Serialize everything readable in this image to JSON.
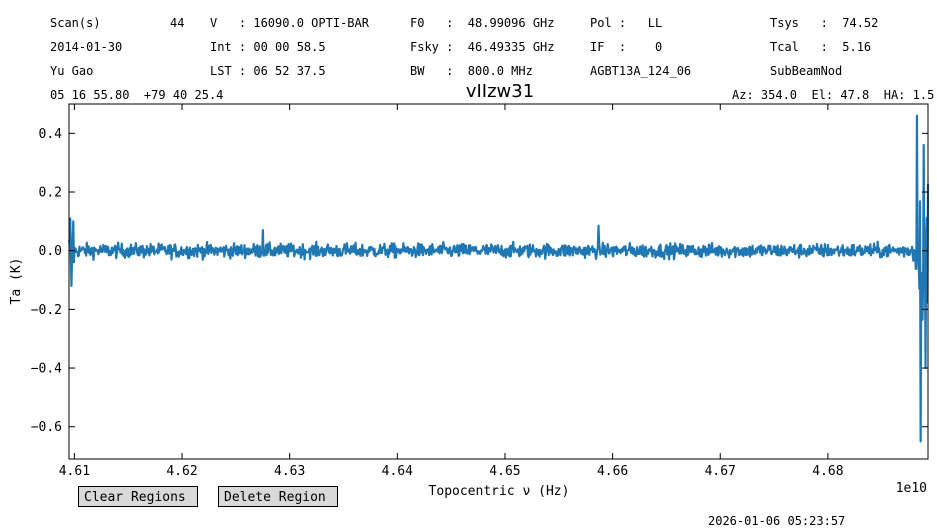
{
  "header": {
    "col1": [
      "Scan(s)",
      "2014-01-30",
      "Yu Gao"
    ],
    "scan_number": "44",
    "col2": [
      "V   : 16090.0 OPTI-BAR",
      "Int : 00 00 58.5",
      "LST : 06 52 37.5"
    ],
    "col3": [
      "F0   :  48.99096 GHz",
      "Fsky :  46.49335 GHz",
      "BW   :  800.0 MHz"
    ],
    "col4": [
      "Pol :   LL",
      "IF  :    0",
      "AGBT13A_124_06"
    ],
    "col5": [
      "Tsys   :  74.52",
      "Tcal   :  5.16",
      "SubBeamNod"
    ],
    "coords": "05 16 55.80  +79 40 25.4",
    "azelha": "Az: 354.0  El: 47.8  HA: 1.5"
  },
  "chart_data": {
    "type": "line",
    "title": "vIIzw31",
    "xlabel": "Topocentric ν (Hz)",
    "ylabel": "Ta (K)",
    "x_offset_label": "1e10",
    "xlim": [
      4.6095,
      4.6893
    ],
    "ylim": [
      -0.71,
      0.5
    ],
    "xticks": [
      4.61,
      4.62,
      4.63,
      4.64,
      4.65,
      4.66,
      4.67,
      4.68
    ],
    "xtick_labels": [
      "4.61",
      "4.62",
      "4.63",
      "4.64",
      "4.65",
      "4.66",
      "4.67",
      "4.68"
    ],
    "yticks": [
      -0.6,
      -0.4,
      -0.2,
      0.0,
      0.2,
      0.4
    ],
    "ytick_labels": [
      "−0.6",
      "−0.4",
      "−0.2",
      "0.0",
      "0.2",
      "0.4"
    ],
    "grid": false,
    "series_color": "#1f77b4",
    "series": [
      {
        "noise_sigma": 0.012,
        "features": [
          {
            "x": 4.6096,
            "y": 0.11
          },
          {
            "x": 4.6097,
            "y": -0.12
          },
          {
            "x": 4.6099,
            "y": 0.1
          },
          {
            "x": 4.6275,
            "y": 0.07
          },
          {
            "x": 4.6587,
            "y": 0.085
          },
          {
            "x": 4.6883,
            "y": 0.46
          },
          {
            "x": 4.6886,
            "y": -0.65
          },
          {
            "x": 4.6889,
            "y": 0.36
          },
          {
            "x": 4.6891,
            "y": -0.4
          }
        ]
      }
    ]
  },
  "buttons": {
    "clear": "Clear Regions",
    "delete": "Delete Region"
  },
  "timestamp": "2026-01-06 05:23:57"
}
